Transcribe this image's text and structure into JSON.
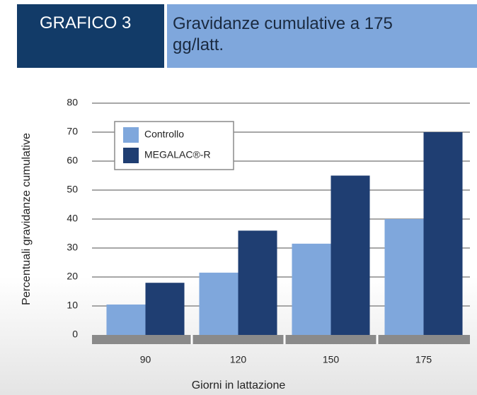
{
  "header": {
    "label": "GRAFICO 3"
  },
  "chart_data": {
    "type": "bar",
    "title": "Gravidanze cumulative a 175 gg/latt.",
    "x_label": "Giorni in lattazione",
    "y_label": "Percentuali gravidanze cumulative",
    "categories": [
      "90",
      "120",
      "150",
      "175"
    ],
    "series": [
      {
        "name": "Controllo",
        "color": "#7fa7dc",
        "values": [
          10.5,
          21.5,
          31.5,
          40
        ]
      },
      {
        "name": "MEGALAC®-R",
        "color": "#1f3e72",
        "values": [
          18,
          36,
          55,
          70
        ]
      }
    ],
    "ylim": [
      0,
      80
    ],
    "yticks": [
      0,
      10,
      20,
      30,
      40,
      50,
      60,
      70,
      80
    ],
    "grid": true,
    "legend": "upper left"
  }
}
